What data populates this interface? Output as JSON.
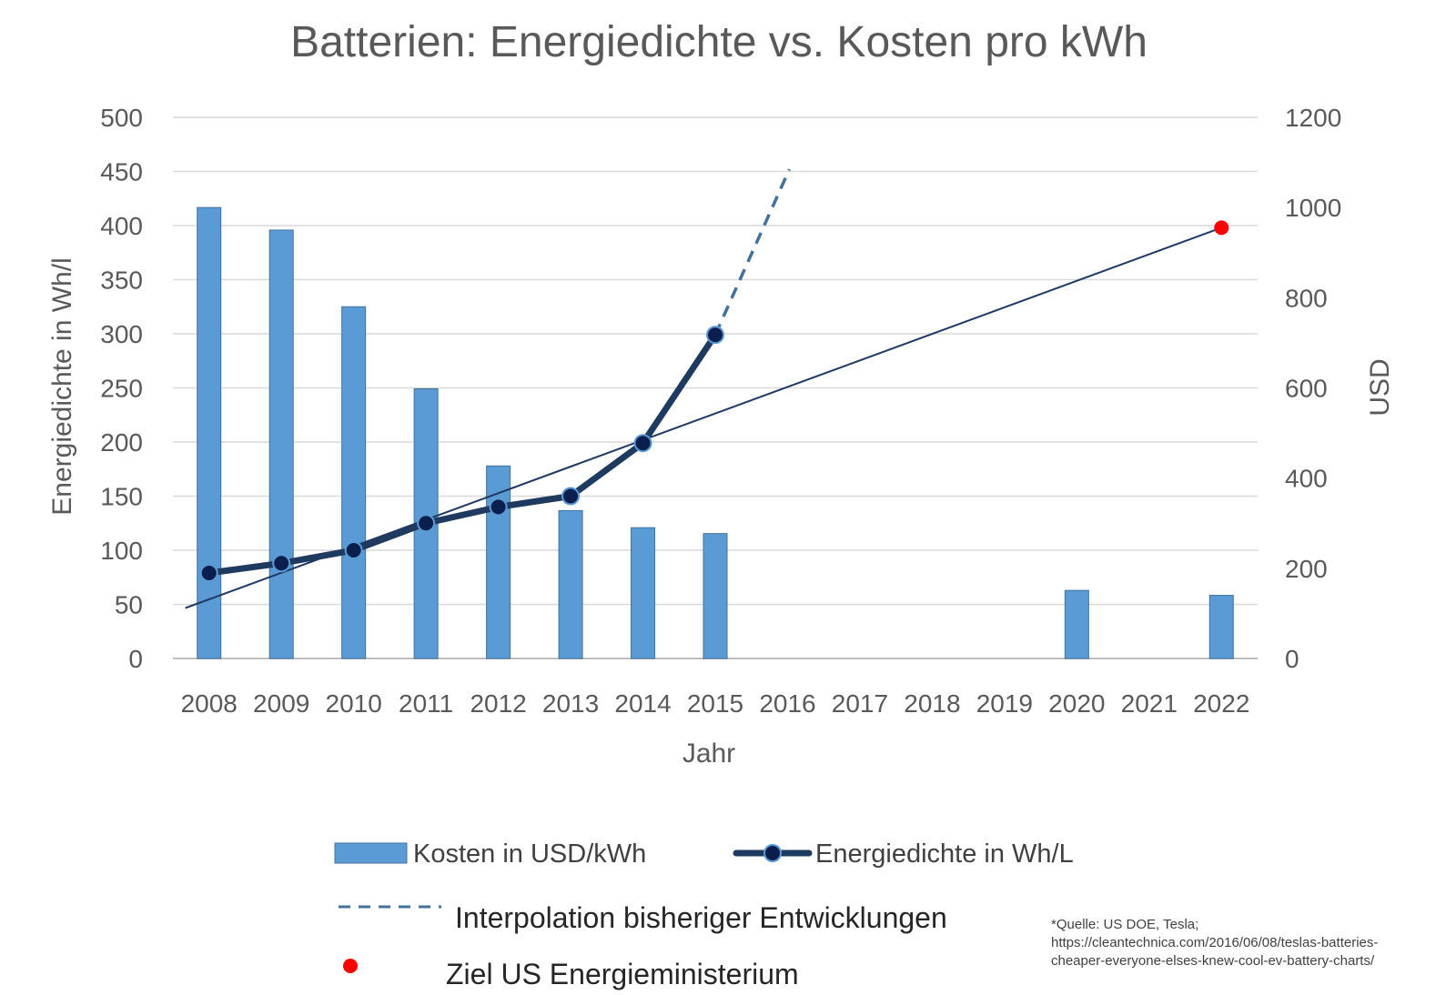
{
  "chart_data": {
    "type": "bar",
    "title": "Batterien: Energiedichte vs. Kosten pro kWh",
    "xlabel": "Jahr",
    "ylabel_left": "Energiedichte in Wh/l",
    "ylabel_right": "USD",
    "categories": [
      "2008",
      "2009",
      "2010",
      "2011",
      "2012",
      "2013",
      "2014",
      "2015",
      "2016",
      "2017",
      "2018",
      "2019",
      "2020",
      "2021",
      "2022"
    ],
    "ylim_left": [
      0,
      500
    ],
    "yticks_left": [
      0,
      50,
      100,
      150,
      200,
      250,
      300,
      350,
      400,
      450,
      500
    ],
    "ylim_right": [
      0,
      1200
    ],
    "yticks_right": [
      0,
      200,
      400,
      600,
      800,
      1000,
      1200
    ],
    "grid": true,
    "legend_position": "bottom",
    "series": [
      {
        "name": "Kosten in USD/kWh",
        "type": "bar",
        "axis": "right",
        "color": "#5b9bd5",
        "values": [
          1000,
          950,
          780,
          598,
          427,
          328,
          290,
          277,
          null,
          null,
          null,
          null,
          151,
          null,
          140
        ]
      },
      {
        "name": "Energiedichte in Wh/L",
        "type": "line",
        "axis": "left",
        "color": "#1f3a5f",
        "marker_color": "#0b1f4e",
        "values": [
          79,
          88,
          100,
          125,
          140,
          150,
          199,
          299,
          null,
          null,
          null,
          null,
          null,
          null,
          null
        ]
      },
      {
        "name": "Interpolation bisheriger Entwicklungen",
        "type": "dashed-line",
        "axis": "left",
        "color": "#41719c",
        "points": [
          {
            "x": "2015",
            "y": 299
          },
          {
            "x": "2016",
            "y": 452
          }
        ]
      },
      {
        "name": "Ziel US Energieministerium",
        "type": "marker",
        "axis": "left",
        "color": "#ff0000",
        "points": [
          {
            "x": "2022",
            "y": 398
          }
        ]
      },
      {
        "name": "trendline",
        "type": "trend-line",
        "axis": "left",
        "color": "#1f3864",
        "points": [
          {
            "x": "2008",
            "y": 50
          },
          {
            "x": "2022",
            "y": 398
          }
        ]
      }
    ],
    "source_lines": [
      "*Quelle: US DOE, Tesla;",
      "https://cleantechnica.com/2016/06/08/teslas-batteries-",
      "cheaper-everyone-elses-knew-cool-ev-battery-charts/"
    ]
  }
}
